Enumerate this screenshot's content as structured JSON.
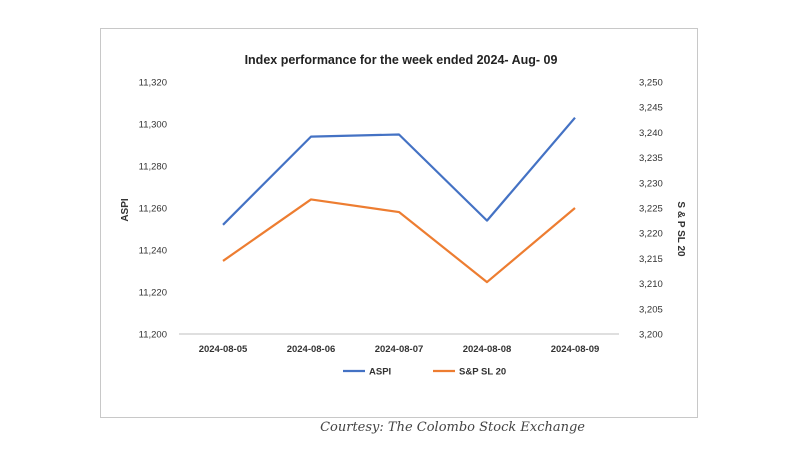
{
  "chart_data": {
    "type": "line",
    "title": "Index performance for the week ended 2024- Aug- 09",
    "categories": [
      "2024-08-05",
      "2024-08-06",
      "2024-08-07",
      "2024-08-08",
      "2024-08-09"
    ],
    "series": [
      {
        "name": "ASPI",
        "axis": "left",
        "color": "#4472c4",
        "values": [
          11252,
          11294,
          11295,
          11254,
          11303
        ]
      },
      {
        "name": "S&P SL 20",
        "axis": "right",
        "color": "#ed7d31",
        "values": [
          3214.5,
          3226.7,
          3224.2,
          3210.3,
          3225.0
        ]
      }
    ],
    "ylabel": "ASPI",
    "ylabel_right": "S & P SL 20",
    "ylim": [
      11200,
      11320
    ],
    "ylim_right": [
      3200,
      3250
    ],
    "yticks": [
      "11,200",
      "11,220",
      "11,240",
      "11,260",
      "11,280",
      "11,300",
      "11,320"
    ],
    "yticks_right": [
      "3,200",
      "3,205",
      "3,210",
      "3,215",
      "3,220",
      "3,225",
      "3,230",
      "3,235",
      "3,240",
      "3,245",
      "3,250"
    ],
    "grid": false,
    "legend": "bottom"
  },
  "credit": "Courtesy: The Colombo Stock Exchange"
}
